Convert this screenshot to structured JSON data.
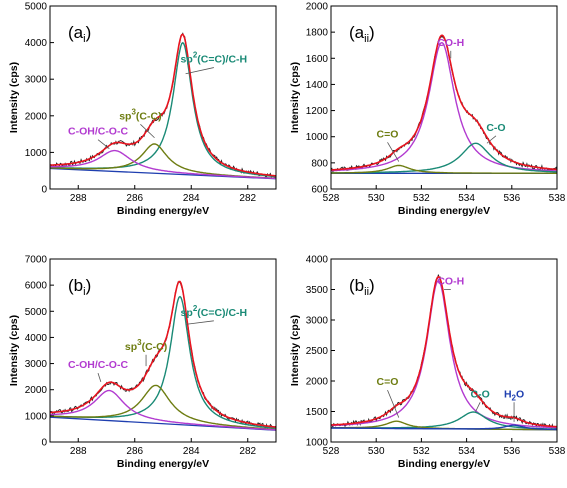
{
  "chart_data": [
    {
      "type": "line",
      "panel_label": "(a",
      "panel_sub": "i",
      "panel_suffix": ")",
      "xlabel": "Binding energy/eV",
      "ylabel": "Intensity (cps)",
      "xlim": [
        289,
        281
      ],
      "ylim": [
        0,
        5000
      ],
      "x_ticks": [
        288,
        286,
        284,
        282
      ],
      "y_ticks": [
        0,
        1000,
        2000,
        3000,
        4000,
        5000
      ],
      "baseline": {
        "y_left": 560,
        "y_right": 280,
        "color": "#1f3fb0"
      },
      "peaks": [
        {
          "name": "sp2(C=C)/C-H",
          "center": 284.3,
          "height": 3600,
          "width": 0.42,
          "color": "#1a8a76"
        },
        {
          "name": "sp3(C-C)",
          "center": 285.3,
          "height": 800,
          "width": 0.55,
          "color": "#6e7d12"
        },
        {
          "name": "C-OH/C-O-C",
          "center": 286.7,
          "height": 570,
          "width": 0.7,
          "color": "#b23bd0"
        }
      ],
      "annotations": [
        {
          "label": "sp",
          "sup": "2",
          "rest": "(C=C)/C-H",
          "x": 284.2,
          "y": 3150,
          "color": "#1a8a76",
          "tx": 283.2,
          "ty": 3400
        },
        {
          "label": "sp",
          "sup": "3",
          "rest": "(C-C)",
          "x": 285.3,
          "y": 1400,
          "color": "#6e7d12",
          "tx": 285.8,
          "ty": 1850
        },
        {
          "label": "C-OH/C-O-C",
          "sup": "",
          "rest": "",
          "x": 286.9,
          "y": 1100,
          "color": "#b23bd0",
          "tx": 287.3,
          "ty": 1430
        }
      ]
    },
    {
      "type": "line",
      "panel_label": "(a",
      "panel_sub": "ii",
      "panel_suffix": ")",
      "xlabel": "Binding energy/eV",
      "ylabel": "Intensity (cps)",
      "xlim": [
        528,
        538
      ],
      "ylim": [
        600,
        2000
      ],
      "x_ticks": [
        528,
        530,
        532,
        534,
        536,
        538
      ],
      "y_ticks": [
        600,
        800,
        1000,
        1200,
        1400,
        1600,
        1800,
        2000
      ],
      "baseline": {
        "y_left": 720,
        "y_right": 720,
        "color": "#1f3fb0"
      },
      "peaks": [
        {
          "name": "CO-H",
          "center": 532.9,
          "height": 1000,
          "width": 0.7,
          "color": "#b23bd0"
        },
        {
          "name": "C-O",
          "center": 534.4,
          "height": 230,
          "width": 0.8,
          "color": "#1a8a76"
        },
        {
          "name": "C=O",
          "center": 531.0,
          "height": 60,
          "width": 0.6,
          "color": "#6e7d12"
        }
      ],
      "annotations": [
        {
          "label": "CO-H",
          "sup": "",
          "rest": "",
          "x": 533.3,
          "y": 1600,
          "color": "#b23bd0",
          "tx": 533.3,
          "ty": 1680
        },
        {
          "label": "C-O",
          "sup": "",
          "rest": "",
          "x": 534.9,
          "y": 950,
          "color": "#1a8a76",
          "tx": 535.3,
          "ty": 1030
        },
        {
          "label": "C=O",
          "sup": "",
          "rest": "",
          "x": 531.0,
          "y": 810,
          "color": "#6e7d12",
          "tx": 530.5,
          "ty": 980
        }
      ]
    },
    {
      "type": "line",
      "panel_label": "(b",
      "panel_sub": "i",
      "panel_suffix": ")",
      "xlabel": "Binding energy/eV",
      "ylabel": "Intensity (cps)",
      "xlim": [
        289,
        281
      ],
      "ylim": [
        0,
        7000
      ],
      "x_ticks": [
        288,
        286,
        284,
        282
      ],
      "y_ticks": [
        0,
        1000,
        2000,
        3000,
        4000,
        5000,
        6000,
        7000
      ],
      "baseline": {
        "y_left": 950,
        "y_right": 450,
        "color": "#1f3fb0"
      },
      "peaks": [
        {
          "name": "sp2(C=C)/C-H",
          "center": 284.4,
          "height": 4900,
          "width": 0.42,
          "color": "#1a8a76"
        },
        {
          "name": "sp3(C-C)",
          "center": 285.25,
          "height": 1450,
          "width": 0.62,
          "color": "#6e7d12"
        },
        {
          "name": "C-OH/C-O-C",
          "center": 286.9,
          "height": 1150,
          "width": 0.65,
          "color": "#b23bd0"
        }
      ],
      "annotations": [
        {
          "label": "sp",
          "sup": "2",
          "rest": "(C=C)/C-H",
          "x": 284.2,
          "y": 4500,
          "color": "#1a8a76",
          "tx": 283.2,
          "ty": 4750
        },
        {
          "label": "sp",
          "sup": "3",
          "rest": "(C-C)",
          "x": 285.6,
          "y": 2900,
          "color": "#6e7d12",
          "tx": 285.6,
          "ty": 3450
        },
        {
          "label": "C-OH/C-O-C",
          "sup": "",
          "rest": "",
          "x": 287.2,
          "y": 2300,
          "color": "#b23bd0",
          "tx": 287.3,
          "ty": 2750
        }
      ]
    },
    {
      "type": "line",
      "panel_label": "(b",
      "panel_sub": "ii",
      "panel_suffix": ")",
      "xlabel": "Binding energy/eV",
      "ylabel": "Intensity (cps)",
      "xlim": [
        528,
        538
      ],
      "ylim": [
        1000,
        4000
      ],
      "x_ticks": [
        528,
        530,
        532,
        534,
        536,
        538
      ],
      "y_ticks": [
        1000,
        1500,
        2000,
        2500,
        3000,
        3500,
        4000
      ],
      "baseline": {
        "y_left": 1230,
        "y_right": 1200,
        "color": "#1f3fb0"
      },
      "peaks": [
        {
          "name": "CO-H",
          "center": 532.75,
          "height": 2430,
          "width": 0.62,
          "color": "#b23bd0"
        },
        {
          "name": "C-O",
          "center": 534.3,
          "height": 280,
          "width": 0.75,
          "color": "#1a8a76"
        },
        {
          "name": "C=O",
          "center": 530.9,
          "height": 120,
          "width": 0.55,
          "color": "#6e7d12"
        },
        {
          "name": "H2O",
          "center": 536.1,
          "height": 70,
          "width": 0.5,
          "color": "#1f3fb0"
        }
      ],
      "annotations": [
        {
          "label": "CO-H",
          "sup": "",
          "rest": "",
          "x": 533.0,
          "y": 3500,
          "color": "#b23bd0",
          "tx": 533.3,
          "ty": 3550
        },
        {
          "label": "C-O",
          "sup": "",
          "rest": "",
          "x": 534.4,
          "y": 1500,
          "color": "#1a8a76",
          "tx": 534.6,
          "ty": 1700
        },
        {
          "label": "H",
          "sub": "2",
          "rest": "O",
          "x": 536.1,
          "y": 1330,
          "color": "#1f3fb0",
          "tx": 536.1,
          "ty": 1700
        },
        {
          "label": "C=O",
          "sup": "",
          "rest": "",
          "x": 531.0,
          "y": 1400,
          "color": "#6e7d12",
          "tx": 530.5,
          "ty": 1900
        }
      ]
    }
  ]
}
